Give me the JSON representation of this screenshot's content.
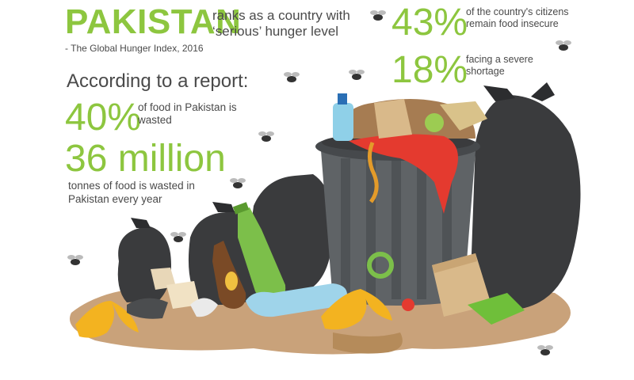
{
  "headline": {
    "country": "PAKISTAN",
    "subtitle": "ranks as a country with ‘serious’ hunger level",
    "source": "- The Global Hunger Index, 2016"
  },
  "report_intro": "According to a report:",
  "stats": {
    "food_wasted_pct": {
      "value": "40%",
      "text": "of food in Pakistan is wasted"
    },
    "tonnes_wasted": {
      "value": "36 million",
      "text": "tonnes of food is wasted in Pakistan every year"
    },
    "food_insecure": {
      "value": "43%",
      "text": "of the country's citizens remain food insecure"
    },
    "severe_shortage": {
      "value": "18%",
      "text": "facing a severe shortage"
    }
  },
  "colors": {
    "accent_green": "#8dc63f",
    "text_dark": "#4a4a4a",
    "bin_gray": "#5f6366",
    "bag_black": "#3a3b3d",
    "ground": "#c9a27a"
  },
  "icons": [
    "fly-icon",
    "trash-can-icon",
    "garbage-bag-icon",
    "bottle-icon",
    "banana-peel-icon",
    "paper-bag-icon"
  ]
}
